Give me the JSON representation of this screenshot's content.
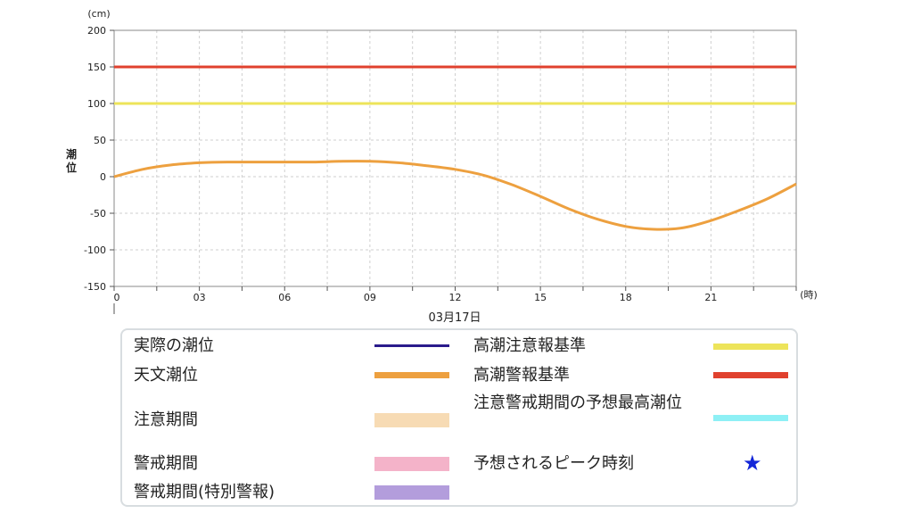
{
  "chart_data": {
    "type": "line",
    "y_unit": "(cm)",
    "ylabel": "潮位",
    "x_unit": "(時)",
    "date_label": "03月17日",
    "xlim": [
      0,
      24
    ],
    "ylim": [
      -150,
      200
    ],
    "y_ticks": [
      200,
      150,
      100,
      50,
      0,
      -50,
      -100,
      -150
    ],
    "x_ticks": [
      {
        "value": 0,
        "label": "0"
      },
      {
        "value": 3,
        "label": "03"
      },
      {
        "value": 6,
        "label": "06"
      },
      {
        "value": 9,
        "label": "09"
      },
      {
        "value": 12,
        "label": "12"
      },
      {
        "value": 15,
        "label": "15"
      },
      {
        "value": 18,
        "label": "18"
      },
      {
        "value": 21,
        "label": "21"
      }
    ],
    "grid": true,
    "reference_lines": [
      {
        "name": "高潮警報基準",
        "value": 150,
        "color": "#e0412e"
      },
      {
        "name": "高潮注意報基準",
        "value": 100,
        "color": "#ede45a"
      }
    ],
    "series": [
      {
        "name": "天文潮位",
        "color": "#eda03f",
        "x": [
          0,
          1,
          2,
          3,
          4,
          5,
          6,
          7,
          8,
          9,
          10,
          11,
          12,
          13,
          14,
          15,
          16,
          17,
          18,
          19,
          20,
          21,
          22,
          23,
          24
        ],
        "y": [
          0,
          10,
          16,
          19,
          20,
          20,
          20,
          20,
          21,
          21,
          19,
          15,
          10,
          2,
          -11,
          -27,
          -44,
          -58,
          -68,
          -72,
          -70,
          -60,
          -46,
          -30,
          -10
        ]
      }
    ]
  },
  "legend": {
    "items": [
      {
        "label": "実際の潮位",
        "color": "#2a1b8c"
      },
      {
        "label": "天文潮位",
        "color": "#eda03f"
      },
      {
        "label": "注意期間",
        "color": "#f7dbb4"
      },
      {
        "label": "警戒期間",
        "color": "#f4b3c9"
      },
      {
        "label": "警戒期間(特別警報)",
        "color": "#b39ddc"
      },
      {
        "label": "高潮注意報基準",
        "color": "#ede45a"
      },
      {
        "label": "高潮警報基準",
        "color": "#e0412e"
      },
      {
        "label": "注意警戒期間の予想最高潮位",
        "color": "#8ef0f5"
      },
      {
        "label": "予想されるピーク時刻",
        "color": "#1326d8",
        "icon": "star-icon"
      }
    ]
  }
}
